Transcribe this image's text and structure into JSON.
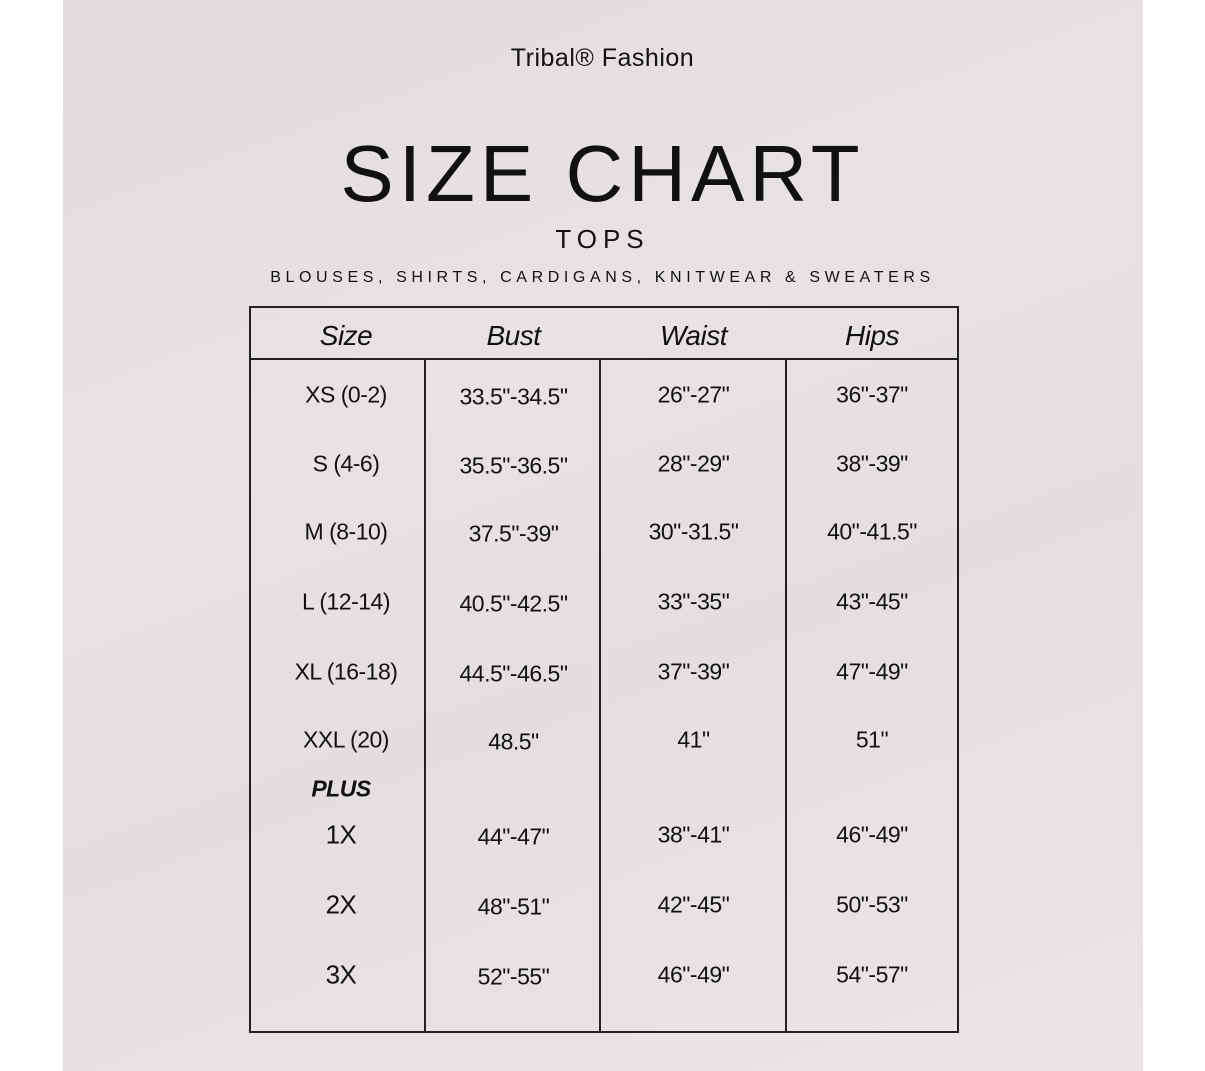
{
  "brand": "Tribal® Fashion",
  "title": "SIZE CHART",
  "subtitle": "TOPS",
  "categories": "BLOUSES, SHIRTS, CARDIGANS, KNITWEAR & SWEATERS",
  "table": {
    "headers": [
      "Size",
      "Bust",
      "Waist",
      "Hips"
    ],
    "rows": [
      [
        "XS (0-2)",
        "33.5\"-34.5\"",
        "26\"-27\"",
        "36\"-37\""
      ],
      [
        "S (4-6)",
        "35.5\"-36.5\"",
        "28\"-29\"",
        "38\"-39\""
      ],
      [
        "M (8-10)",
        "37.5\"-39\"",
        "30\"-31.5\"",
        "40\"-41.5\""
      ],
      [
        "L (12-14)",
        "40.5\"-42.5\"",
        "33\"-35\"",
        "43\"-45\""
      ],
      [
        "XL (16-18)",
        "44.5\"-46.5\"",
        "37\"-39\"",
        "47\"-49\""
      ],
      [
        "XXL (20)",
        "48.5\"",
        "41\"",
        "51\""
      ]
    ],
    "plus_label": "PLUS",
    "plus_rows": [
      [
        "1X",
        "44\"-47\"",
        "38\"-41\"",
        "46\"-49\""
      ],
      [
        "2X",
        "48\"-51\"",
        "42\"-45\"",
        "50\"-53\""
      ],
      [
        "3X",
        "52\"-55\"",
        "46\"-49\"",
        "54\"-57\""
      ]
    ]
  }
}
